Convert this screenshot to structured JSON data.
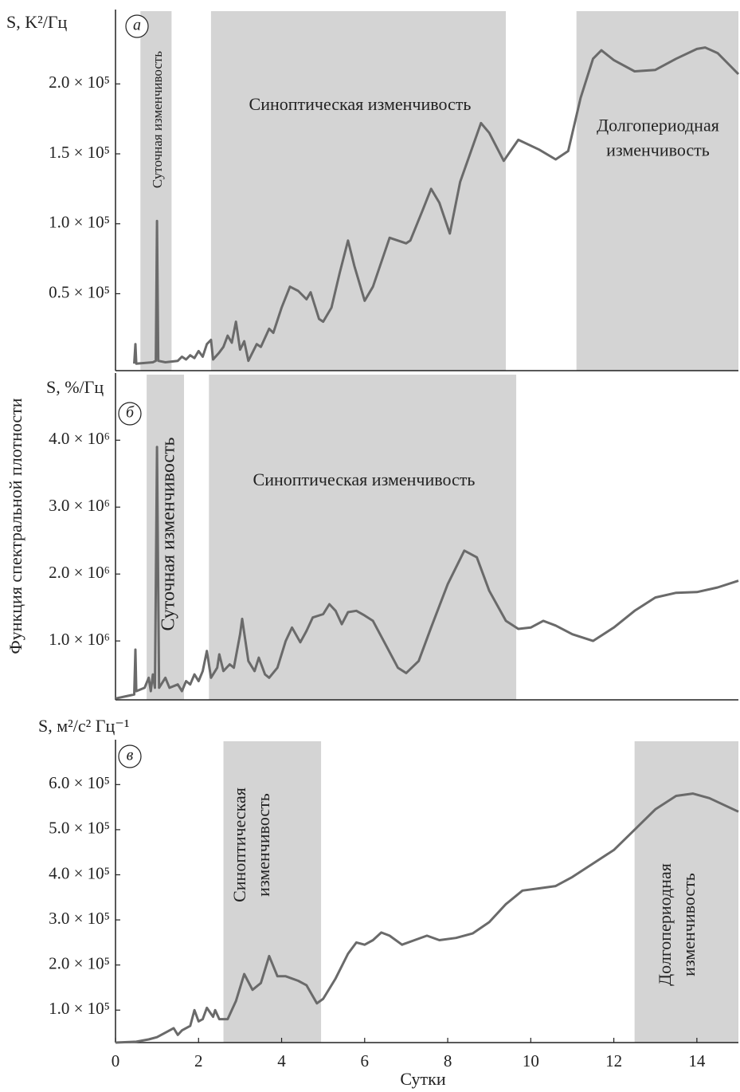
{
  "ylabel": "Функция спектральной плотности",
  "chart_data": [
    {
      "type": "line",
      "panel_label": "а",
      "ylabel": "S, K²/Гц",
      "color": "#6a6a6a",
      "shade_color": "#d4d4d4",
      "regions": [
        {
          "start": 0.6,
          "end": 1.35,
          "label": [
            "Суточная изменчивость"
          ]
        },
        {
          "start": 2.3,
          "end": 9.4,
          "label": [
            "Синоптическая изменчивость"
          ]
        },
        {
          "start": 11.1,
          "end": 15,
          "label": [
            "Долгопериодная",
            "изменчивость"
          ]
        }
      ],
      "x": [
        0.45,
        0.48,
        0.5,
        0.9,
        0.97,
        1.0,
        1.03,
        1.2,
        1.5,
        1.6,
        1.7,
        1.8,
        1.9,
        2.0,
        2.1,
        2.2,
        2.3,
        2.35,
        2.5,
        2.6,
        2.7,
        2.8,
        2.9,
        3.0,
        3.1,
        3.2,
        3.4,
        3.5,
        3.7,
        3.8,
        4.0,
        4.2,
        4.4,
        4.6,
        4.7,
        4.9,
        5.0,
        5.2,
        5.4,
        5.6,
        5.75,
        6.0,
        6.2,
        6.6,
        7.0,
        7.1,
        7.4,
        7.6,
        7.8,
        8.05,
        8.3,
        8.8,
        9.0,
        9.35,
        9.7,
        10.2,
        10.6,
        10.9,
        11.2,
        11.5,
        11.7,
        12.0,
        12.5,
        13.0,
        13.5,
        14.0,
        14.2,
        14.5,
        15.0
      ],
      "values": [
        0,
        14000,
        0,
        1000,
        2000,
        102000,
        2000,
        1000,
        2000,
        5000,
        3000,
        6000,
        4000,
        9000,
        5000,
        14000,
        17000,
        3000,
        8000,
        12000,
        20000,
        15000,
        30000,
        10000,
        16000,
        2000,
        14000,
        12000,
        25000,
        22000,
        40000,
        55000,
        52000,
        46000,
        51000,
        32000,
        30000,
        40000,
        65000,
        88000,
        70000,
        45000,
        55000,
        90000,
        86000,
        88000,
        110000,
        125000,
        115000,
        93000,
        130000,
        172000,
        165000,
        145000,
        160000,
        153000,
        146000,
        152000,
        190000,
        218000,
        224000,
        217000,
        209000,
        210000,
        218000,
        225000,
        226000,
        222000,
        207000
      ],
      "xlim": [
        0,
        15
      ],
      "ylim": [
        -5000,
        252000
      ],
      "yticks": [
        {
          "value": 50000,
          "label": "0.5 × 10⁵"
        },
        {
          "value": 100000,
          "label": "1.0 × 10⁵"
        },
        {
          "value": 150000,
          "label": "1.5 × 10⁵"
        },
        {
          "value": 200000,
          "label": "2.0 × 10⁵"
        }
      ]
    },
    {
      "type": "line",
      "panel_label": "б",
      "ylabel": "S, %/Гц",
      "color": "#6a6a6a",
      "shade_color": "#d4d4d4",
      "regions": [
        {
          "start": 0.75,
          "end": 1.65,
          "label": [
            "Суточная изменчивость"
          ]
        },
        {
          "start": 2.25,
          "end": 9.65,
          "label": [
            "Синоптическая изменчивость"
          ]
        }
      ],
      "x": [
        0,
        0.3,
        0.45,
        0.48,
        0.5,
        0.7,
        0.8,
        0.85,
        0.9,
        0.95,
        1.0,
        1.05,
        1.2,
        1.3,
        1.5,
        1.6,
        1.7,
        1.8,
        1.9,
        2.0,
        2.1,
        2.2,
        2.3,
        2.45,
        2.5,
        2.6,
        2.75,
        2.85,
        3.0,
        3.05,
        3.2,
        3.35,
        3.45,
        3.6,
        3.7,
        3.9,
        4.1,
        4.25,
        4.45,
        4.6,
        4.75,
        5.0,
        5.15,
        5.3,
        5.45,
        5.6,
        5.8,
        6.0,
        6.2,
        6.5,
        6.8,
        7.0,
        7.3,
        7.6,
        8.0,
        8.4,
        8.7,
        9.0,
        9.4,
        9.7,
        10.0,
        10.3,
        10.6,
        11.0,
        11.5,
        12.0,
        12.5,
        13.0,
        13.5,
        14.0,
        14.5,
        15.0
      ],
      "values": [
        140000,
        180000,
        200000,
        870000,
        250000,
        300000,
        450000,
        250000,
        500000,
        300000,
        3900000,
        300000,
        450000,
        300000,
        350000,
        250000,
        400000,
        350000,
        500000,
        400000,
        550000,
        850000,
        450000,
        600000,
        800000,
        550000,
        650000,
        600000,
        1100000,
        1330000,
        700000,
        550000,
        750000,
        500000,
        450000,
        600000,
        1000000,
        1200000,
        980000,
        1150000,
        1350000,
        1400000,
        1550000,
        1450000,
        1250000,
        1430000,
        1450000,
        1380000,
        1300000,
        950000,
        600000,
        520000,
        700000,
        1200000,
        1850000,
        2350000,
        2250000,
        1750000,
        1300000,
        1180000,
        1200000,
        1300000,
        1230000,
        1100000,
        1000000,
        1200000,
        1450000,
        1650000,
        1720000,
        1730000,
        1800000,
        1900000
      ],
      "xlim": [
        0,
        15
      ],
      "ylim": [
        120000,
        4980000
      ],
      "yticks": [
        {
          "value": 1000000,
          "label": "1.0 × 10⁶"
        },
        {
          "value": 2000000,
          "label": "2.0 × 10⁶"
        },
        {
          "value": 3000000,
          "label": "3.0 × 10⁶"
        },
        {
          "value": 4000000,
          "label": "4.0 × 10⁶"
        }
      ]
    },
    {
      "type": "line",
      "panel_label": "в",
      "ylabel": "S, м²/с² Гц⁻¹",
      "xlabel": "Сутки",
      "color": "#6a6a6a",
      "shade_color": "#d4d4d4",
      "regions": [
        {
          "start": 2.6,
          "end": 4.95,
          "label": [
            "Синоптическая",
            "изменчивость"
          ]
        },
        {
          "start": 12.5,
          "end": 15,
          "label": [
            "Долгопериодная",
            "изменчивость"
          ]
        }
      ],
      "x": [
        0,
        0.5,
        0.8,
        1.0,
        1.2,
        1.4,
        1.5,
        1.6,
        1.8,
        1.9,
        2.0,
        2.1,
        2.2,
        2.35,
        2.4,
        2.5,
        2.7,
        2.9,
        3.1,
        3.3,
        3.5,
        3.7,
        3.9,
        4.1,
        4.4,
        4.6,
        4.85,
        5.0,
        5.3,
        5.6,
        5.8,
        6.0,
        6.2,
        6.4,
        6.6,
        6.9,
        7.2,
        7.5,
        7.8,
        8.2,
        8.6,
        9.0,
        9.4,
        9.8,
        10.2,
        10.6,
        11.0,
        11.5,
        12.0,
        12.5,
        13.0,
        13.5,
        13.9,
        14.3,
        15.0
      ],
      "values": [
        28000,
        30000,
        35000,
        40000,
        50000,
        60000,
        45000,
        55000,
        65000,
        100000,
        75000,
        80000,
        105000,
        85000,
        100000,
        80000,
        80000,
        120000,
        180000,
        145000,
        160000,
        220000,
        175000,
        175000,
        165000,
        155000,
        115000,
        125000,
        170000,
        225000,
        250000,
        245000,
        255000,
        272000,
        265000,
        245000,
        255000,
        265000,
        255000,
        260000,
        270000,
        295000,
        335000,
        365000,
        370000,
        375000,
        395000,
        425000,
        455000,
        500000,
        545000,
        575000,
        580000,
        570000,
        540000
      ],
      "xlim": [
        0,
        15
      ],
      "ylim": [
        28000,
        696000
      ],
      "xticks": [
        0,
        2,
        4,
        6,
        8,
        10,
        12,
        14
      ],
      "yticks": [
        {
          "value": 100000,
          "label": "1.0 × 10⁵"
        },
        {
          "value": 200000,
          "label": "2.0 × 10⁵"
        },
        {
          "value": 300000,
          "label": "3.0 × 10⁵"
        },
        {
          "value": 400000,
          "label": "4.0 × 10⁵"
        },
        {
          "value": 500000,
          "label": "5.0 × 10⁵"
        },
        {
          "value": 600000,
          "label": "6.0 × 10⁵"
        }
      ]
    }
  ]
}
